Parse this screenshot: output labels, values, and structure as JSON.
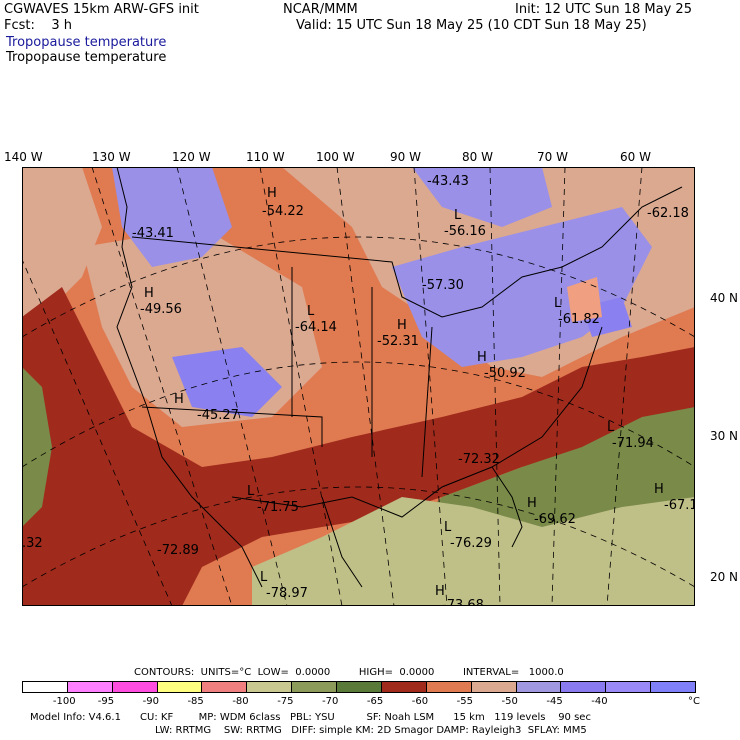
{
  "header": {
    "model": "CGWAVES 15km ARW-GFS init",
    "org": "NCAR/MMM",
    "init": "Init: 12 UTC Sun 18 May 25",
    "fcst": "Fcst:    3 h",
    "valid": "Valid: 15 UTC Sun 18 May 25 (10 CDT Sun 18 May 25)",
    "field_blue": "Tropopause temperature",
    "field_black": "Tropopause temperature"
  },
  "lon_labels": [
    "140 W",
    "130 W",
    "120 W",
    "110 W",
    "100 W",
    "90 W",
    "80 W",
    "70 W",
    "60 W"
  ],
  "lat_labels": [
    "40 N",
    "30 N",
    "20 N"
  ],
  "map_labels": [
    {
      "kind": "H",
      "value": "-54.22"
    },
    {
      "kind": "",
      "value": "-43.43"
    },
    {
      "kind": "L",
      "value": "-56.16"
    },
    {
      "kind": "",
      "value": "-62.18"
    },
    {
      "kind": "",
      "value": "-43.41"
    },
    {
      "kind": "H",
      "value": "-49.56"
    },
    {
      "kind": "L",
      "value": "-64.14"
    },
    {
      "kind": "H",
      "value": "-52.31"
    },
    {
      "kind": "",
      "value": "-57.30"
    },
    {
      "kind": "L",
      "value": "-61.82"
    },
    {
      "kind": "H",
      "value": "-50.92"
    },
    {
      "kind": "H",
      "value": "-45.27"
    },
    {
      "kind": "L",
      "value": "-71.94"
    },
    {
      "kind": "",
      "value": "-72.32"
    },
    {
      "kind": "L",
      "value": "-71.75"
    },
    {
      "kind": "H",
      "value": "-69.62"
    },
    {
      "kind": "H",
      "value": "-67.1"
    },
    {
      "kind": "",
      "value": "-72.89"
    },
    {
      "kind": "L",
      "value": "-76.29"
    },
    {
      "kind": "L",
      "value": "-78.97"
    },
    {
      "kind": "H",
      "value": "-73.68"
    },
    {
      "kind": "",
      "value": ".32"
    }
  ],
  "contour_line": "CONTOURS:  UNITS=°C  LOW=  0.0000         HIGH=  0.0000         INTERVAL=   1000.0",
  "colorbar": {
    "colors": [
      "#ffffff",
      "#ff80ff",
      "#ff4de0",
      "#ffff80",
      "#f08080",
      "#c8c890",
      "#8c9a5a",
      "#5a7a3a",
      "#a02a1c",
      "#e07a50",
      "#dba890",
      "#a098e0",
      "#8a7af0",
      "#9a8af8",
      "#8080f8"
    ],
    "labels": [
      "-100",
      "-95",
      "-90",
      "-85",
      "-80",
      "-75",
      "-70",
      "-65",
      "-60",
      "-55",
      "-50",
      "-45",
      "-40"
    ],
    "unit": "°C"
  },
  "footer": {
    "line1": "Model Info: V4.6.1      CU: KF        MP: WDM 6class   PBL: YSU          SF: Noah LSM      15 km   119 levels    90 sec",
    "line2": "LW: RRTMG    SW: RRTMG   DIFF: simple KM: 2D Smagor DAMP: Rayleigh3  SFLAY: MM5"
  }
}
